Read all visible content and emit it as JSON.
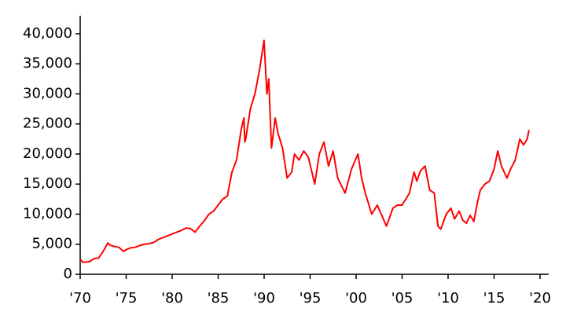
{
  "chart_data": {
    "type": "line",
    "x": [
      1970.0,
      1970.3,
      1971.0,
      1971.5,
      1972.0,
      1972.5,
      1973.0,
      1973.3,
      1973.8,
      1974.2,
      1974.7,
      1975.0,
      1975.5,
      1976.0,
      1976.5,
      1977.0,
      1977.5,
      1978.0,
      1978.5,
      1979.0,
      1979.5,
      1980.0,
      1980.5,
      1981.0,
      1981.5,
      1982.0,
      1982.5,
      1983.0,
      1983.5,
      1984.0,
      1984.5,
      1985.0,
      1985.5,
      1986.0,
      1986.5,
      1987.0,
      1987.5,
      1987.8,
      1987.9,
      1988.0,
      1988.5,
      1989.0,
      1989.5,
      1989.99,
      1990.3,
      1990.5,
      1990.8,
      1991.2,
      1991.5,
      1992.0,
      1992.5,
      1993.0,
      1993.3,
      1993.8,
      1994.3,
      1994.8,
      1995.5,
      1996.0,
      1996.5,
      1997.0,
      1997.5,
      1998.0,
      1998.8,
      1999.5,
      2000.2,
      2000.6,
      2001.0,
      2001.7,
      2002.3,
      2003.3,
      2004.0,
      2004.5,
      2005.0,
      2005.8,
      2006.3,
      2006.6,
      2007.0,
      2007.5,
      2008.0,
      2008.5,
      2008.9,
      2009.2,
      2009.8,
      2010.3,
      2010.7,
      2011.2,
      2011.6,
      2012.0,
      2012.4,
      2012.8,
      2013.2,
      2013.5,
      2014.0,
      2014.5,
      2015.0,
      2015.4,
      2015.8,
      2016.4,
      2016.8,
      2017.3,
      2017.8,
      2018.2,
      2018.6,
      2018.8
    ],
    "values": [
      2500,
      2000,
      2100,
      2600,
      2700,
      3800,
      5200,
      4800,
      4600,
      4500,
      3800,
      4100,
      4400,
      4500,
      4800,
      5000,
      5100,
      5300,
      5800,
      6100,
      6400,
      6700,
      7000,
      7300,
      7700,
      7600,
      7000,
      8000,
      8900,
      10000,
      10500,
      11500,
      12500,
      13000,
      17000,
      19000,
      24000,
      26000,
      22000,
      22500,
      27500,
      30000,
      34000,
      38900,
      30000,
      32500,
      21000,
      26000,
      23500,
      21000,
      16000,
      17000,
      20000,
      19000,
      20500,
      19500,
      15000,
      20000,
      22000,
      18000,
      20500,
      16000,
      13500,
      17500,
      20000,
      16000,
      13500,
      10000,
      11500,
      8000,
      11000,
      11500,
      11500,
      13500,
      17000,
      15500,
      17200,
      18000,
      14000,
      13500,
      8000,
      7500,
      10000,
      11000,
      9200,
      10500,
      9000,
      8500,
      9800,
      8800,
      12000,
      14000,
      15000,
      15500,
      17500,
      20500,
      18000,
      16000,
      17500,
      19000,
      22500,
      21500,
      22500,
      24000
    ],
    "color": "#ff0000",
    "xlim": [
      1970,
      2020
    ],
    "xticks": [
      {
        "value": 1970,
        "label": "'70"
      },
      {
        "value": 1975,
        "label": "'75"
      },
      {
        "value": 1980,
        "label": "'80"
      },
      {
        "value": 1985,
        "label": "'85"
      },
      {
        "value": 1990,
        "label": "'90"
      },
      {
        "value": 1995,
        "label": "'95"
      },
      {
        "value": 2000,
        "label": "'00"
      },
      {
        "value": 2005,
        "label": "'05"
      },
      {
        "value": 2010,
        "label": "'10"
      },
      {
        "value": 2015,
        "label": "'15"
      },
      {
        "value": 2020,
        "label": "'20"
      }
    ],
    "ylim": [
      0,
      43000
    ],
    "yticks": [
      0,
      {
        "value": 5000,
        "label": "5,000"
      },
      {
        "value": 10000,
        "label": "10,000"
      },
      {
        "value": 15000,
        "label": "15,000"
      },
      {
        "value": 20000,
        "label": "20,000"
      },
      {
        "value": 25000,
        "label": "25,000"
      },
      {
        "value": 30000,
        "label": "30,000"
      },
      {
        "value": 35000,
        "label": "35,000"
      },
      {
        "value": 40000,
        "label": "40,000"
      }
    ]
  }
}
